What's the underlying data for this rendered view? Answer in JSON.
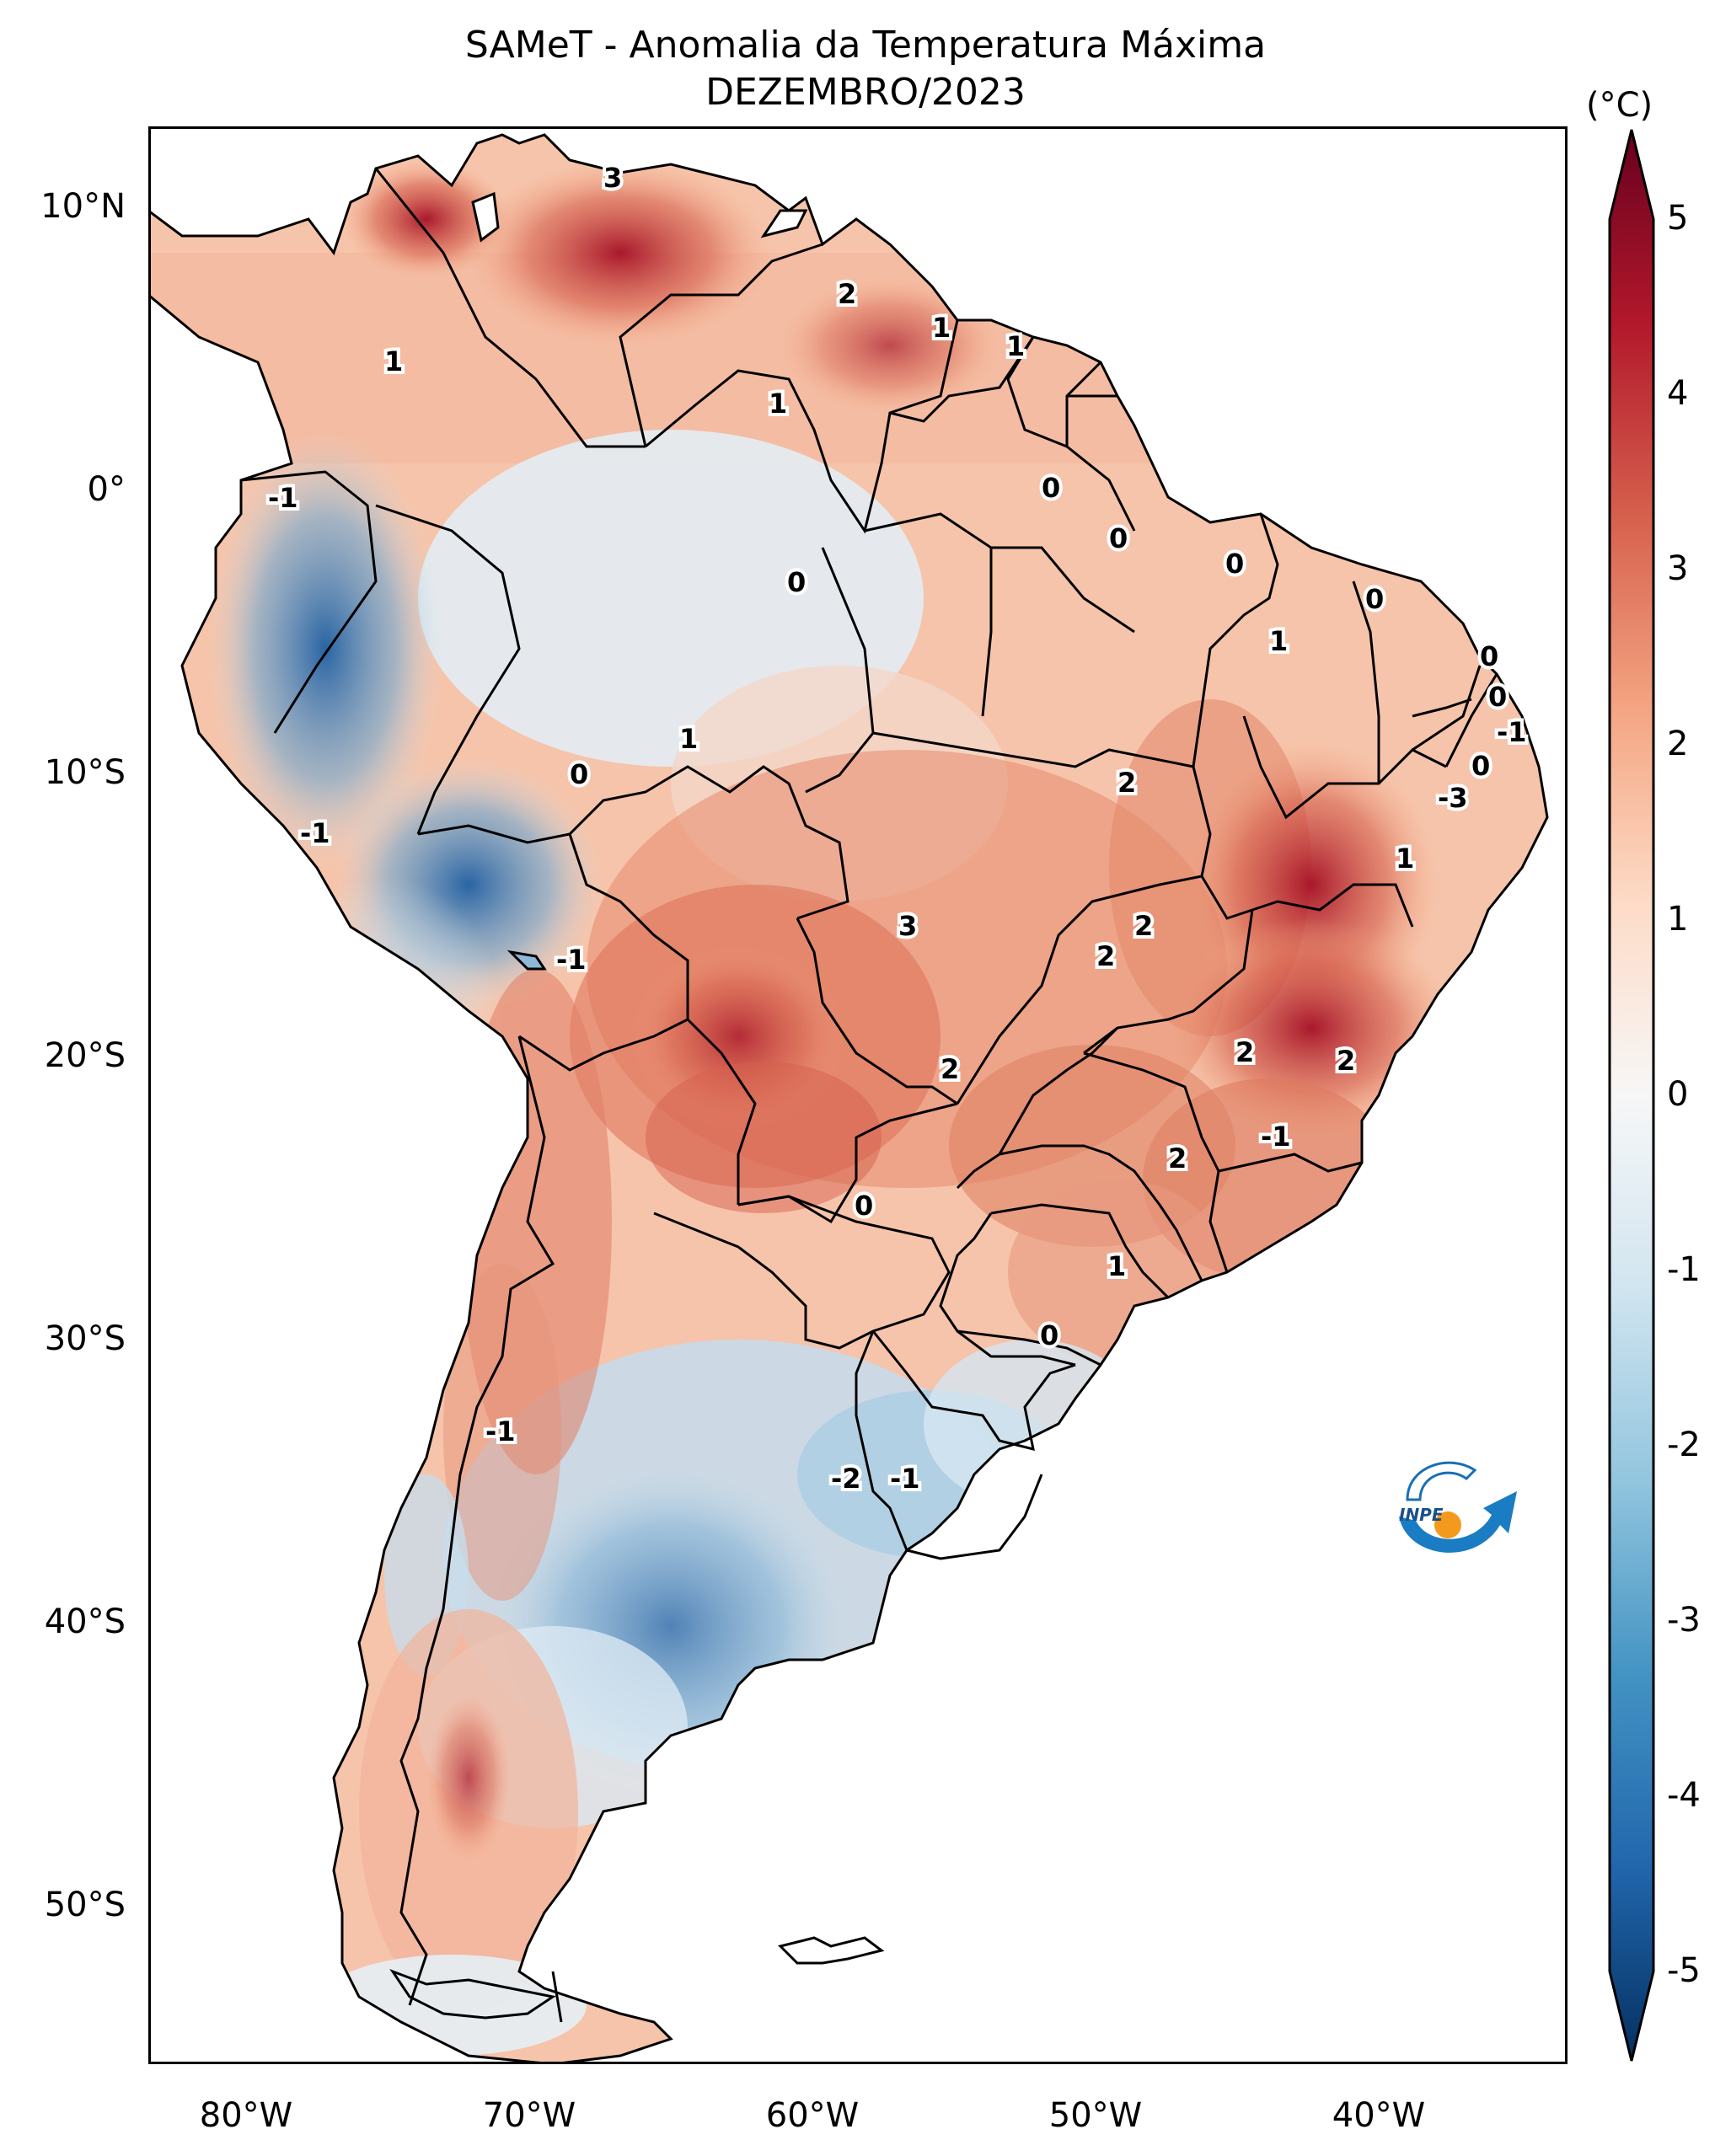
{
  "title": {
    "line1": "SAMeT - Anomalia da Temperatura Máxima",
    "line2": "DEZEMBRO/2023"
  },
  "axes": {
    "y_labels": [
      "10°N",
      "0°",
      "10°S",
      "20°S",
      "30°S",
      "40°S",
      "50°S"
    ],
    "x_labels": [
      "80°W",
      "70°W",
      "60°W",
      "50°W",
      "40°W"
    ]
  },
  "colorbar": {
    "unit": "(°C)",
    "ticks": [
      "5",
      "4",
      "3",
      "2",
      "1",
      "0",
      "-1",
      "-2",
      "-3",
      "-4",
      "-5"
    ],
    "colors": [
      "#67001f",
      "#b2182b",
      "#d6604d",
      "#f4a582",
      "#fddbc7",
      "#f7f7f7",
      "#d1e5f0",
      "#92c5de",
      "#4393c3",
      "#2166ac",
      "#053061"
    ]
  },
  "contour_labels": [
    "3",
    "2",
    "1",
    "1",
    "1",
    "1",
    "0",
    "0",
    "0",
    "0",
    "-1",
    "0",
    "1",
    "0",
    "0",
    "-1",
    "0",
    "1",
    "0",
    "2",
    "-3",
    "-1",
    "1",
    "3",
    "2",
    "2",
    "-1",
    "2",
    "2",
    "2",
    "-1",
    "0",
    "2",
    "1",
    "0",
    "-1",
    "-2",
    "-1"
  ],
  "logo": {
    "text": "INPE",
    "icon": "inpe-logo-icon"
  }
}
